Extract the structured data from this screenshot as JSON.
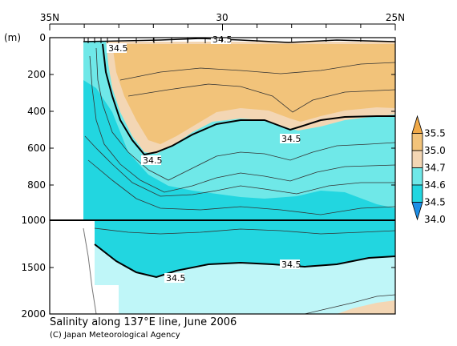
{
  "chart_data": {
    "type": "heatmap",
    "title": "Salinity along 137°E line, June 2006",
    "credit": "(C) Japan Meteorological Agency",
    "x_tick_labels": [
      "35N",
      "30",
      "25N"
    ],
    "x_ticks_lat": [
      35,
      30,
      25
    ],
    "y_unit_label": "(m)",
    "y_tick_labels_upper": [
      "0",
      "200",
      "400",
      "600",
      "800",
      "1000"
    ],
    "y_tick_labels_lower": [
      "1500",
      "2000"
    ],
    "colorbar": {
      "levels": [
        "35.5",
        "35.0",
        "34.7",
        "34.6",
        "34.5",
        "34.0"
      ],
      "colors": [
        "#f0a948",
        "#f2c37a",
        "#f3d6b4",
        "#6fe8e8",
        "#22d6e0",
        "#1c8ee6"
      ]
    },
    "contour_labels": [
      "34.5",
      "34.5",
      "34.5",
      "34.5",
      "34.5",
      "34.5"
    ],
    "contour_label_values": [
      34.5,
      34.5,
      34.5,
      34.5,
      34.5,
      34.5
    ]
  },
  "colors": {
    "background": "#ffffff",
    "low_salinity": "#22d6e0",
    "mid_salinity": "#6fe8e8",
    "lower_deep": "#5ee6ee",
    "core_high": "#f2c37a",
    "core_rim": "#f3d6b4",
    "frame": "#000000"
  }
}
